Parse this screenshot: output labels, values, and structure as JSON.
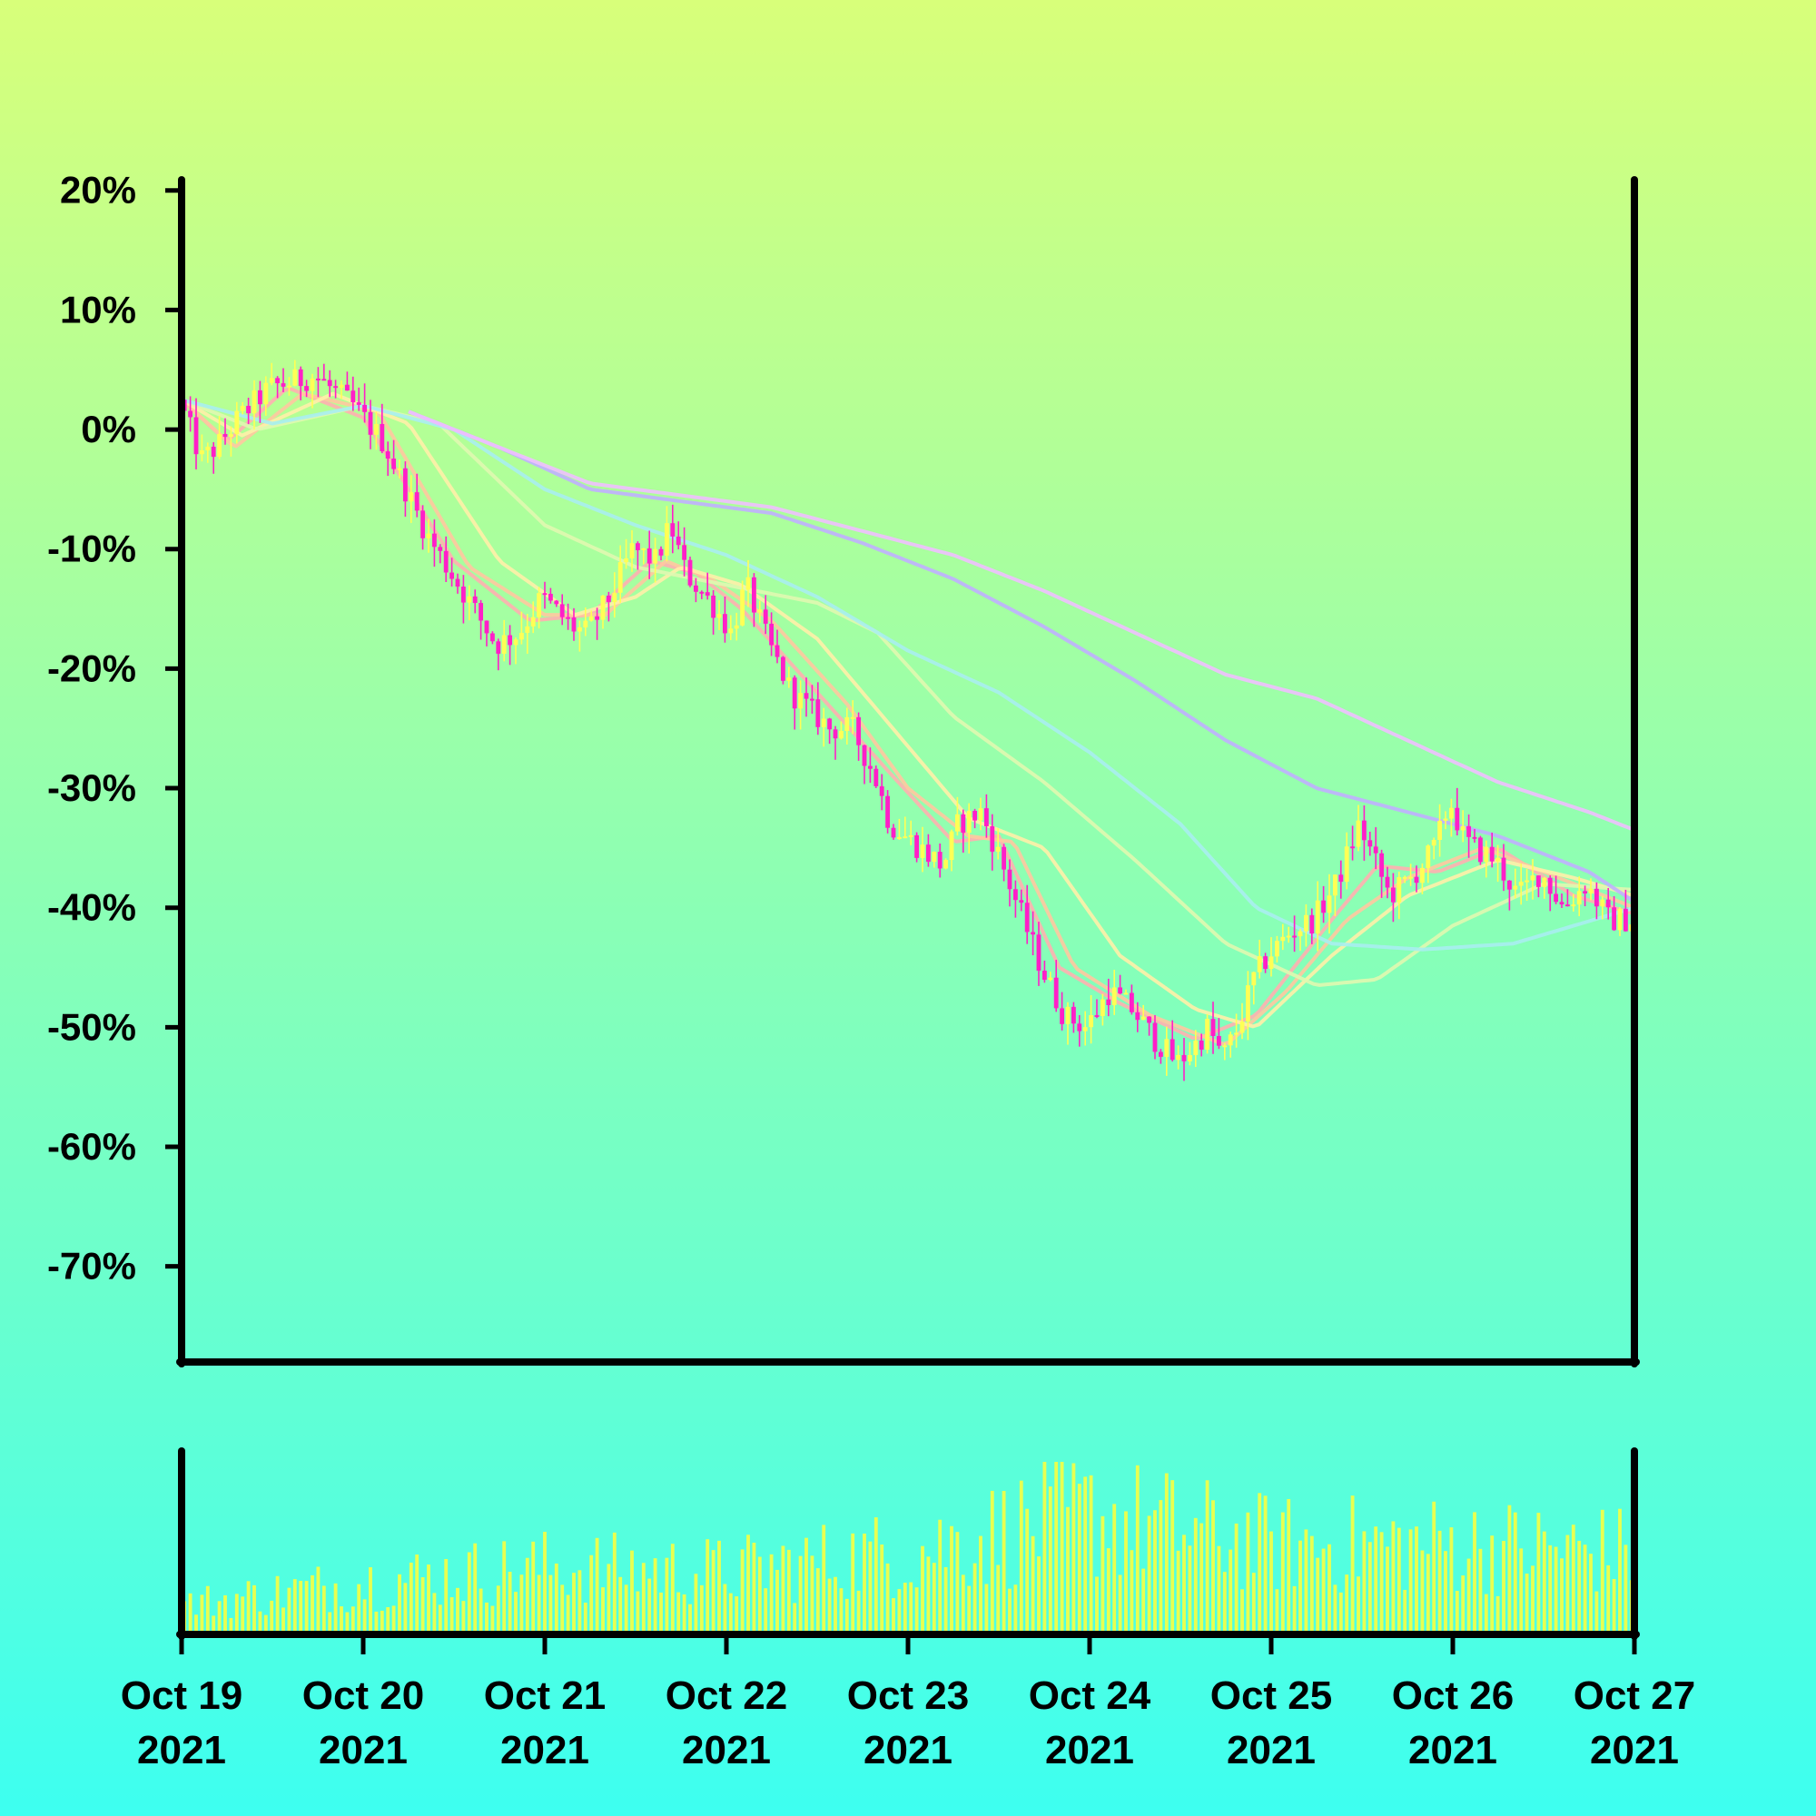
{
  "chart_data": {
    "type": "candlestick",
    "title": "",
    "xlabel": "",
    "ylabel": "",
    "background_gradient": [
      "#d8ff7a",
      "#3dfff0"
    ],
    "colors": {
      "up": "#ffff55",
      "down": "#ff1fc8",
      "volume": "#e8ff50",
      "axes": "#000000"
    },
    "y_axis": {
      "unit": "%",
      "ylim": [
        -78,
        21.5
      ],
      "ticks": [
        20,
        10,
        0,
        -10,
        -20,
        -30,
        -40,
        -50,
        -60,
        -70
      ],
      "tick_labels": [
        "20%",
        "10%",
        "0%",
        "-10%",
        "-20%",
        "-30%",
        "-40%",
        "-50%",
        "-60%",
        "-70%"
      ]
    },
    "x_axis": {
      "range": [
        "2021-10-19",
        "2021-10-27"
      ],
      "ticks": [
        "2021-10-19",
        "2021-10-20",
        "2021-10-21",
        "2021-10-22",
        "2021-10-23",
        "2021-10-24",
        "2021-10-25",
        "2021-10-26",
        "2021-10-27"
      ],
      "tick_labels": [
        [
          "Oct 19",
          "2021"
        ],
        [
          "Oct 20",
          "2021"
        ],
        [
          "Oct 21",
          "2021"
        ],
        [
          "Oct 22",
          "2021"
        ],
        [
          "Oct 23",
          "2021"
        ],
        [
          "Oct 24",
          "2021"
        ],
        [
          "Oct 25",
          "2021"
        ],
        [
          "Oct 26",
          "2021"
        ],
        [
          "Oct 27",
          "2021"
        ]
      ]
    },
    "price_path": [
      [
        "2021-10-19T00:00",
        2.5
      ],
      [
        "2021-10-19T03:00",
        -2.5
      ],
      [
        "2021-10-19T05:00",
        -1.5
      ],
      [
        "2021-10-19T08:00",
        1
      ],
      [
        "2021-10-19T12:00",
        3.5
      ],
      [
        "2021-10-19T18:00",
        4.5
      ],
      [
        "2021-10-19T23:00",
        2
      ],
      [
        "2021-10-20T03:00",
        -1
      ],
      [
        "2021-10-20T06:00",
        -5
      ],
      [
        "2021-10-20T09:00",
        -9
      ],
      [
        "2021-10-20T13:00",
        -13
      ],
      [
        "2021-10-20T18:00",
        -18
      ],
      [
        "2021-10-20T21:00",
        -17
      ],
      [
        "2021-10-21T00:00",
        -14
      ],
      [
        "2021-10-21T04:00",
        -16.5
      ],
      [
        "2021-10-21T06:00",
        -17
      ],
      [
        "2021-10-21T09:00",
        -14
      ],
      [
        "2021-10-21T12:00",
        -10
      ],
      [
        "2021-10-21T15:00",
        -11
      ],
      [
        "2021-10-21T17:00",
        -8
      ],
      [
        "2021-10-21T19:00",
        -12
      ],
      [
        "2021-10-21T23:00",
        -15
      ],
      [
        "2021-10-22T01:00",
        -17
      ],
      [
        "2021-10-22T03:00",
        -13
      ],
      [
        "2021-10-22T06:00",
        -18
      ],
      [
        "2021-10-22T09:00",
        -22
      ],
      [
        "2021-10-22T14:00",
        -25
      ],
      [
        "2021-10-22T17:00",
        -25
      ],
      [
        "2021-10-22T20:00",
        -29
      ],
      [
        "2021-10-22T22:00",
        -33
      ],
      [
        "2021-10-23T02:00",
        -35
      ],
      [
        "2021-10-23T05:00",
        -36.5
      ],
      [
        "2021-10-23T07:00",
        -33
      ],
      [
        "2021-10-23T10:00",
        -32
      ],
      [
        "2021-10-23T12:00",
        -35
      ],
      [
        "2021-10-23T15:00",
        -40
      ],
      [
        "2021-10-23T18:00",
        -45
      ],
      [
        "2021-10-23T21:00",
        -49
      ],
      [
        "2021-10-24T00:00",
        -50
      ],
      [
        "2021-10-24T03:00",
        -47
      ],
      [
        "2021-10-24T06:00",
        -48.5
      ],
      [
        "2021-10-24T09:00",
        -51
      ],
      [
        "2021-10-24T12:00",
        -53
      ],
      [
        "2021-10-24T15:00",
        -51
      ],
      [
        "2021-10-24T16:00",
        -50
      ],
      [
        "2021-10-24T18:00",
        -52.5
      ],
      [
        "2021-10-24T20:00",
        -50
      ],
      [
        "2021-10-24T22:00",
        -46
      ],
      [
        "2021-10-25T00:00",
        -44
      ],
      [
        "2021-10-25T03:00",
        -42
      ],
      [
        "2021-10-25T06:00",
        -41
      ],
      [
        "2021-10-25T09:00",
        -38
      ],
      [
        "2021-10-25T12:00",
        -33
      ],
      [
        "2021-10-25T14:00",
        -36
      ],
      [
        "2021-10-25T16:00",
        -39
      ],
      [
        "2021-10-25T19:00",
        -37.5
      ],
      [
        "2021-10-25T22:00",
        -35
      ],
      [
        "2021-10-26T00:00",
        -31
      ],
      [
        "2021-10-26T02:00",
        -34.5
      ],
      [
        "2021-10-26T06:00",
        -36
      ],
      [
        "2021-10-26T09:00",
        -39
      ],
      [
        "2021-10-26T12:00",
        -37
      ],
      [
        "2021-10-26T15:00",
        -40
      ],
      [
        "2021-10-26T18:00",
        -38
      ],
      [
        "2021-10-26T21:00",
        -41
      ],
      [
        "2021-10-27T00:00",
        -41
      ]
    ],
    "moving_averages": [
      {
        "color": "#ffb0b0",
        "values": [
          [
            "2021-10-19T00:00",
            2.5
          ],
          [
            "2021-10-19T06:00",
            -1
          ],
          [
            "2021-10-19T14:00",
            3.5
          ],
          [
            "2021-10-20T00:00",
            1
          ],
          [
            "2021-10-20T12:00",
            -11
          ],
          [
            "2021-10-20T22:00",
            -16
          ],
          [
            "2021-10-21T06:00",
            -15.5
          ],
          [
            "2021-10-21T14:00",
            -11
          ],
          [
            "2021-10-21T20:00",
            -12
          ],
          [
            "2021-10-22T02:00",
            -15
          ],
          [
            "2021-10-22T12:00",
            -22
          ],
          [
            "2021-10-22T22:00",
            -29
          ],
          [
            "2021-10-23T06:00",
            -34.5
          ],
          [
            "2021-10-23T12:00",
            -34
          ],
          [
            "2021-10-23T20:00",
            -45
          ],
          [
            "2021-10-24T04:00",
            -48
          ],
          [
            "2021-10-24T14:00",
            -51
          ],
          [
            "2021-10-24T22:00",
            -49
          ],
          [
            "2021-10-25T08:00",
            -41
          ],
          [
            "2021-10-25T14:00",
            -36.5
          ],
          [
            "2021-10-25T22:00",
            -37
          ],
          [
            "2021-10-26T06:00",
            -35
          ],
          [
            "2021-10-26T16:00",
            -39
          ],
          [
            "2021-10-27T00:00",
            -40.5
          ]
        ]
      },
      {
        "color": "#ffc8a0",
        "values": [
          [
            "2021-10-19T00:00",
            2.5
          ],
          [
            "2021-10-19T07:00",
            -1.5
          ],
          [
            "2021-10-19T16:00",
            3
          ],
          [
            "2021-10-20T02:00",
            1.5
          ],
          [
            "2021-10-20T14:00",
            -11.5
          ],
          [
            "2021-10-21T00:00",
            -15.5
          ],
          [
            "2021-10-21T08:00",
            -15.5
          ],
          [
            "2021-10-21T16:00",
            -11
          ],
          [
            "2021-10-21T22:00",
            -12.5
          ],
          [
            "2021-10-22T06:00",
            -16
          ],
          [
            "2021-10-22T16:00",
            -23
          ],
          [
            "2021-10-23T00:00",
            -30
          ],
          [
            "2021-10-23T08:00",
            -34
          ],
          [
            "2021-10-23T14:00",
            -34.5
          ],
          [
            "2021-10-23T22:00",
            -45
          ],
          [
            "2021-10-24T08:00",
            -49
          ],
          [
            "2021-10-24T18:00",
            -51.5
          ],
          [
            "2021-10-25T02:00",
            -47
          ],
          [
            "2021-10-25T10:00",
            -41
          ],
          [
            "2021-10-25T18:00",
            -37.5
          ],
          [
            "2021-10-26T04:00",
            -35
          ],
          [
            "2021-10-26T14:00",
            -37.5
          ],
          [
            "2021-10-27T00:00",
            -40
          ]
        ]
      },
      {
        "color": "#fff0a8",
        "values": [
          [
            "2021-10-19T00:00",
            2.5
          ],
          [
            "2021-10-19T08:00",
            -0.5
          ],
          [
            "2021-10-19T20:00",
            3
          ],
          [
            "2021-10-20T06:00",
            0.5
          ],
          [
            "2021-10-20T18:00",
            -11
          ],
          [
            "2021-10-21T04:00",
            -15.5
          ],
          [
            "2021-10-21T12:00",
            -14
          ],
          [
            "2021-10-21T18:00",
            -11.5
          ],
          [
            "2021-10-22T02:00",
            -13
          ],
          [
            "2021-10-22T12:00",
            -17.5
          ],
          [
            "2021-10-22T22:00",
            -25
          ],
          [
            "2021-10-23T08:00",
            -32.5
          ],
          [
            "2021-10-23T18:00",
            -35
          ],
          [
            "2021-10-24T04:00",
            -44
          ],
          [
            "2021-10-24T14:00",
            -48.5
          ],
          [
            "2021-10-24T22:00",
            -50
          ],
          [
            "2021-10-25T08:00",
            -44
          ],
          [
            "2021-10-25T18:00",
            -39
          ],
          [
            "2021-10-26T06:00",
            -36
          ],
          [
            "2021-10-26T16:00",
            -37.5
          ],
          [
            "2021-10-27T00:00",
            -39
          ]
        ]
      },
      {
        "color": "#e0f8b0",
        "values": [
          [
            "2021-10-19T00:00",
            2.5
          ],
          [
            "2021-10-19T10:00",
            0
          ],
          [
            "2021-10-20T00:00",
            2
          ],
          [
            "2021-10-20T10:00",
            0.5
          ],
          [
            "2021-10-21T00:00",
            -8
          ],
          [
            "2021-10-21T12:00",
            -11.5
          ],
          [
            "2021-10-22T00:00",
            -13
          ],
          [
            "2021-10-22T12:00",
            -14.5
          ],
          [
            "2021-10-22T20:00",
            -17
          ],
          [
            "2021-10-23T06:00",
            -24
          ],
          [
            "2021-10-23T18:00",
            -29.5
          ],
          [
            "2021-10-24T06:00",
            -36
          ],
          [
            "2021-10-24T18:00",
            -43
          ],
          [
            "2021-10-25T06:00",
            -46.5
          ],
          [
            "2021-10-25T14:00",
            -46
          ],
          [
            "2021-10-26T00:00",
            -41.5
          ],
          [
            "2021-10-26T12:00",
            -38
          ],
          [
            "2021-10-27T00:00",
            -38.5
          ]
        ]
      },
      {
        "color": "#a8eef0",
        "values": [
          [
            "2021-10-19T00:00",
            2.5
          ],
          [
            "2021-10-19T12:00",
            0.5
          ],
          [
            "2021-10-20T00:00",
            2
          ],
          [
            "2021-10-20T12:00",
            0
          ],
          [
            "2021-10-21T00:00",
            -5
          ],
          [
            "2021-10-21T12:00",
            -8
          ],
          [
            "2021-10-22T00:00",
            -10.5
          ],
          [
            "2021-10-22T12:00",
            -14
          ],
          [
            "2021-10-23T00:00",
            -18.5
          ],
          [
            "2021-10-23T12:00",
            -22
          ],
          [
            "2021-10-24T00:00",
            -27
          ],
          [
            "2021-10-24T12:00",
            -33
          ],
          [
            "2021-10-24T22:00",
            -40
          ],
          [
            "2021-10-25T08:00",
            -43
          ],
          [
            "2021-10-25T20:00",
            -43.5
          ],
          [
            "2021-10-26T08:00",
            -43
          ],
          [
            "2021-10-27T00:00",
            -40
          ]
        ]
      },
      {
        "color": "#c0b0ff",
        "values": [
          [
            "2021-10-20T06:00",
            1.5
          ],
          [
            "2021-10-20T18:00",
            -1.5
          ],
          [
            "2021-10-21T06:00",
            -5
          ],
          [
            "2021-10-21T18:00",
            -6
          ],
          [
            "2021-10-22T06:00",
            -7
          ],
          [
            "2021-10-22T18:00",
            -9.5
          ],
          [
            "2021-10-23T06:00",
            -12.5
          ],
          [
            "2021-10-23T18:00",
            -16.5
          ],
          [
            "2021-10-24T06:00",
            -21
          ],
          [
            "2021-10-24T18:00",
            -26
          ],
          [
            "2021-10-25T06:00",
            -30
          ],
          [
            "2021-10-25T18:00",
            -32
          ],
          [
            "2021-10-26T06:00",
            -34
          ],
          [
            "2021-10-26T18:00",
            -37
          ],
          [
            "2021-10-27T00:00",
            -39.5
          ]
        ]
      },
      {
        "color": "#f0c0ff",
        "values": [
          [
            "2021-10-20T06:00",
            1.5
          ],
          [
            "2021-10-20T18:00",
            -1.5
          ],
          [
            "2021-10-21T06:00",
            -4.5
          ],
          [
            "2021-10-21T18:00",
            -5.5
          ],
          [
            "2021-10-22T06:00",
            -6.5
          ],
          [
            "2021-10-22T18:00",
            -8.5
          ],
          [
            "2021-10-23T06:00",
            -10.5
          ],
          [
            "2021-10-23T18:00",
            -13.5
          ],
          [
            "2021-10-24T06:00",
            -17
          ],
          [
            "2021-10-24T18:00",
            -20.5
          ],
          [
            "2021-10-25T06:00",
            -22.5
          ],
          [
            "2021-10-25T18:00",
            -26
          ],
          [
            "2021-10-26T06:00",
            -29.5
          ],
          [
            "2021-10-26T18:00",
            -32
          ],
          [
            "2021-10-27T00:00",
            -33.5
          ]
        ]
      }
    ],
    "volume": {
      "relative_level_by_day": [
        [
          "2021-10-19",
          0.2
        ],
        [
          "2021-10-20",
          0.35
        ],
        [
          "2021-10-21",
          0.45
        ],
        [
          "2021-10-22",
          0.42
        ],
        [
          "2021-10-23",
          0.55
        ],
        [
          "2021-10-24",
          0.8
        ],
        [
          "2021-10-25",
          0.6
        ],
        [
          "2021-10-26",
          0.6
        ],
        [
          "2021-10-27",
          0.55
        ]
      ]
    }
  }
}
